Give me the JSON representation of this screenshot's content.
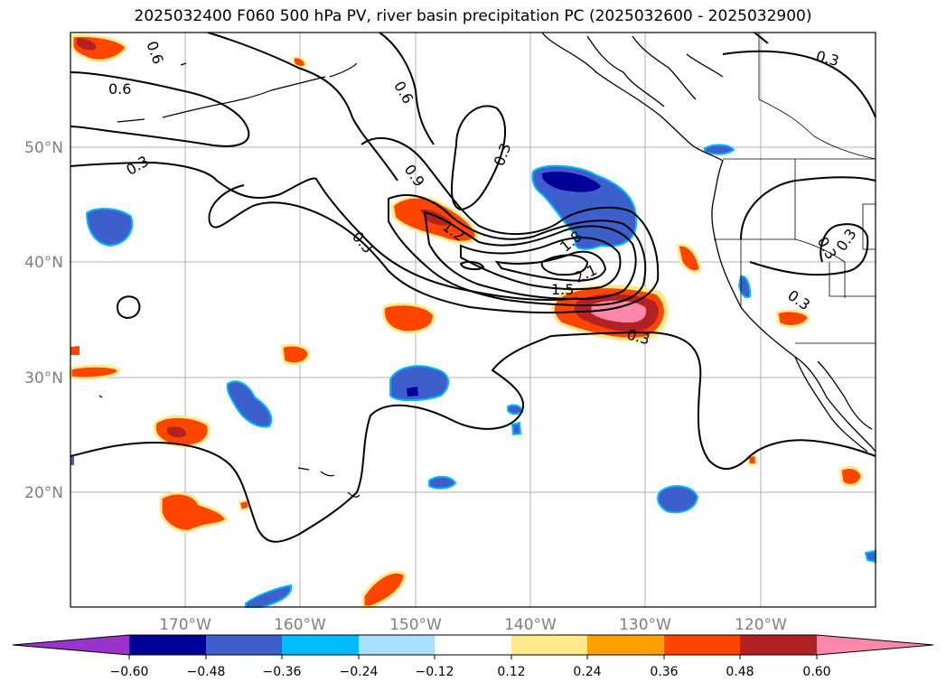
{
  "title": "2025032400 F060 500 hPa PV, river basin precipitation PC (2025032600 - 2025032900)",
  "map": {
    "lat_labels": [
      "50°N",
      "40°N",
      "30°N",
      "20°N"
    ],
    "lon_labels": [
      "170°W",
      "160°W",
      "150°W",
      "140°W",
      "130°W",
      "120°W"
    ],
    "contour_labels": [
      "0.6",
      "0.6",
      "0.6",
      "0.3",
      "0.3",
      "0.9",
      "0.3",
      "1.2",
      "1.8",
      "2.1",
      "1.5",
      "0.3",
      "0.3",
      "0.3",
      "0.3",
      "0.3"
    ],
    "colors": {
      "c_n60": "#9933cc",
      "c_n48": "#000099",
      "c_n36": "#3d5fcc",
      "c_n24": "#00bbff",
      "c_n12": "#aadfff",
      "c_zero": "#ffffff",
      "c_p12": "#ffe98a",
      "c_p24": "#ff9f00",
      "c_p36": "#ff4500",
      "c_p48": "#b22222",
      "c_p60": "#ff88aa"
    }
  },
  "colorbar": {
    "ticks": [
      "−0.60",
      "−0.48",
      "−0.36",
      "−0.24",
      "−0.12",
      "0.12",
      "0.24",
      "0.36",
      "0.48",
      "0.60"
    ]
  }
}
